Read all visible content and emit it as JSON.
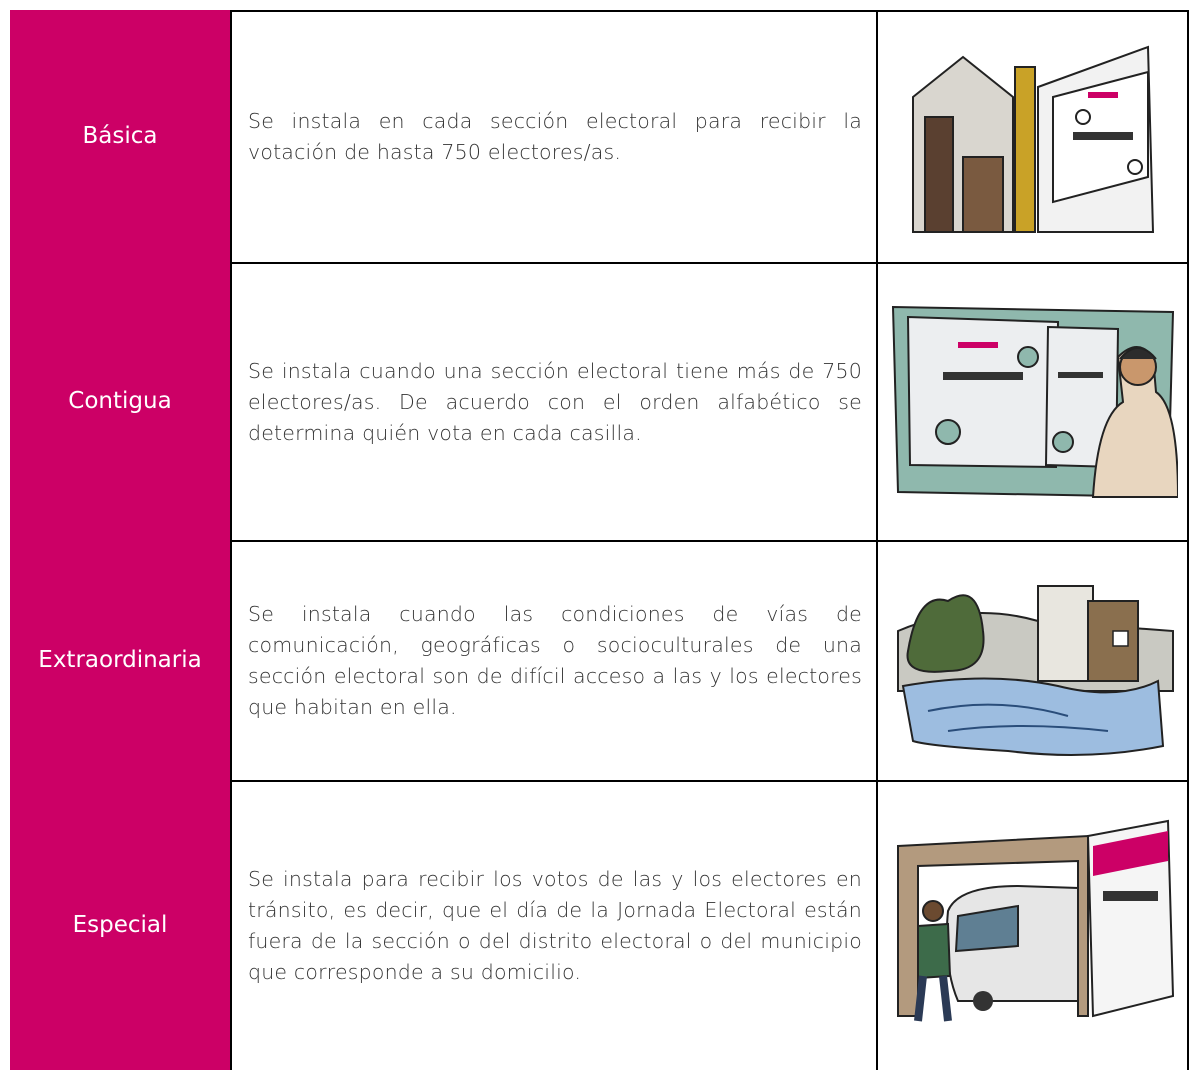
{
  "table": {
    "rows": [
      {
        "type": "Básica",
        "description": "Se instala en cada sección electoral para recibir la votación de hasta 750 electores/as."
      },
      {
        "type": "Contigua",
        "description": "Se instala cuando una sección electoral tiene más de 750 electores/as. De acuerdo con el orden alfabético se determina quién vota en cada casilla."
      },
      {
        "type": "Extraordinaria",
        "description": "Se instala cuando las condiciones de vías de comunicación, geográficas o socioculturales de una sección electoral son de difícil acceso a las y los electores que habitan en ella."
      },
      {
        "type": "Especial",
        "description": "Se instala para recibir los votos de las y los electores en tránsito, es decir, que el día de la Jornada Electoral están fuera de la sección o del distrito electoral o del municipio que corresponde a su domicilio."
      }
    ]
  }
}
